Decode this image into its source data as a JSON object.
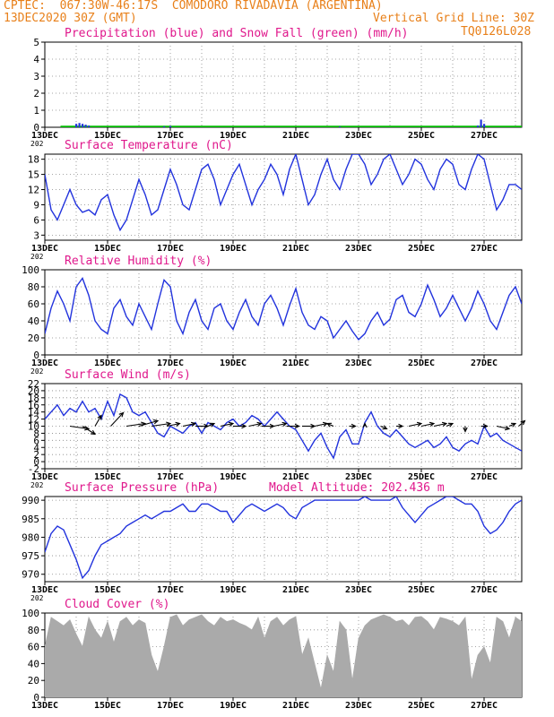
{
  "header": {
    "line1": "CPTEC:  067:30W-46:17S  COMODORO RIVADAVIA (ARGENTINA)",
    "line2_left": "13DEC2020 30Z (GMT)",
    "line2_right": "Vertical Grid Line: 30Z",
    "code": "TQ0126L028",
    "year_fragment": "202"
  },
  "colors": {
    "header": "#e8801a",
    "title": "#e0188c",
    "line": "#2233dd",
    "snow": "#00bb00",
    "cloud": "#aaaaaa",
    "grid": "#888888",
    "arrow": "#000000"
  },
  "x_axis": {
    "days": [
      "13DEC",
      "15DEC",
      "17DEC",
      "19DEC",
      "21DEC",
      "23DEC",
      "25DEC",
      "27DEC"
    ],
    "day_values": [
      13,
      15,
      17,
      19,
      21,
      23,
      25,
      27
    ],
    "xlim": [
      13,
      28.2
    ]
  },
  "chart_data": [
    {
      "type": "bar",
      "id": "precip",
      "title": "Precipitation (blue) and Snow Fall (green) (mm/h)",
      "ylim": [
        0,
        5
      ],
      "yticks": [
        0,
        1,
        2,
        3,
        4,
        5
      ],
      "yticklabels": [
        "0",
        "1",
        "2",
        "3",
        "4",
        "5"
      ],
      "series": [
        {
          "name": "precipitation",
          "color": "#2233dd",
          "points": [
            [
              14.0,
              0.2
            ],
            [
              14.1,
              0.25
            ],
            [
              14.2,
              0.2
            ],
            [
              14.3,
              0.15
            ],
            [
              14.4,
              0.1
            ],
            [
              16.8,
              0.05
            ],
            [
              17.0,
              0.07
            ],
            [
              22.4,
              0.04
            ],
            [
              26.8,
              0.1
            ],
            [
              26.9,
              0.45
            ],
            [
              27.0,
              0.2
            ]
          ]
        },
        {
          "name": "snowfall",
          "color": "#00bb00",
          "baseline_from": 13.5,
          "baseline_to": 28.2,
          "value": 0.04
        }
      ]
    },
    {
      "type": "line",
      "id": "temp",
      "title": "Surface Temperature (nC)",
      "ylim": [
        2,
        19
      ],
      "yticks": [
        3,
        6,
        9,
        12,
        15,
        18
      ],
      "yticklabels": [
        "3",
        "6",
        "9",
        "12",
        "15",
        "18"
      ],
      "x": [
        13.0,
        13.2,
        13.4,
        13.6,
        13.8,
        14.0,
        14.2,
        14.4,
        14.6,
        14.8,
        15.0,
        15.2,
        15.4,
        15.6,
        15.8,
        16.0,
        16.2,
        16.4,
        16.6,
        16.8,
        17.0,
        17.2,
        17.4,
        17.6,
        17.8,
        18.0,
        18.2,
        18.4,
        18.6,
        18.8,
        19.0,
        19.2,
        19.4,
        19.6,
        19.8,
        20.0,
        20.2,
        20.4,
        20.6,
        20.8,
        21.0,
        21.2,
        21.4,
        21.6,
        21.8,
        22.0,
        22.2,
        22.4,
        22.6,
        22.8,
        23.0,
        23.2,
        23.4,
        23.6,
        23.8,
        24.0,
        24.2,
        24.4,
        24.6,
        24.8,
        25.0,
        25.2,
        25.4,
        25.6,
        25.8,
        26.0,
        26.2,
        26.4,
        26.6,
        26.8,
        27.0,
        27.2,
        27.4,
        27.6,
        27.8,
        28.0,
        28.2
      ],
      "values": [
        15,
        8,
        6,
        9,
        12,
        9,
        7.5,
        8,
        7,
        10,
        11,
        7,
        4,
        6,
        10,
        14,
        11,
        7,
        8,
        12,
        16,
        13,
        9,
        8,
        12,
        16,
        17,
        14,
        9,
        12,
        15,
        17,
        13,
        9,
        12,
        14,
        17,
        15,
        11,
        16,
        19,
        14,
        9,
        11,
        15,
        18,
        14,
        12,
        16,
        19,
        19,
        17,
        13,
        15,
        18,
        19,
        16,
        13,
        15,
        18,
        17,
        14,
        12,
        16,
        18,
        17,
        13,
        12,
        16,
        19,
        18,
        13,
        8,
        10,
        13,
        13,
        12
      ],
      "series_color": "#2233dd"
    },
    {
      "type": "line",
      "id": "rh",
      "title": "Relative Humidity (%)",
      "ylim": [
        0,
        100
      ],
      "yticks": [
        0,
        20,
        40,
        60,
        80,
        100
      ],
      "yticklabels": [
        "0",
        "20",
        "40",
        "60",
        "80",
        "100"
      ],
      "x": [
        13.0,
        13.2,
        13.4,
        13.6,
        13.8,
        14.0,
        14.2,
        14.4,
        14.6,
        14.8,
        15.0,
        15.2,
        15.4,
        15.6,
        15.8,
        16.0,
        16.2,
        16.4,
        16.6,
        16.8,
        17.0,
        17.2,
        17.4,
        17.6,
        17.8,
        18.0,
        18.2,
        18.4,
        18.6,
        18.8,
        19.0,
        19.2,
        19.4,
        19.6,
        19.8,
        20.0,
        20.2,
        20.4,
        20.6,
        20.8,
        21.0,
        21.2,
        21.4,
        21.6,
        21.8,
        22.0,
        22.2,
        22.4,
        22.6,
        22.8,
        23.0,
        23.2,
        23.4,
        23.6,
        23.8,
        24.0,
        24.2,
        24.4,
        24.6,
        24.8,
        25.0,
        25.2,
        25.4,
        25.6,
        25.8,
        26.0,
        26.2,
        26.4,
        26.6,
        26.8,
        27.0,
        27.2,
        27.4,
        27.6,
        27.8,
        28.0,
        28.2
      ],
      "values": [
        25,
        55,
        75,
        60,
        40,
        80,
        90,
        70,
        40,
        30,
        25,
        55,
        65,
        45,
        35,
        60,
        45,
        30,
        60,
        88,
        80,
        40,
        25,
        50,
        65,
        40,
        30,
        55,
        60,
        40,
        30,
        50,
        65,
        45,
        35,
        60,
        70,
        55,
        35,
        58,
        78,
        50,
        35,
        30,
        45,
        40,
        20,
        30,
        40,
        28,
        18,
        25,
        40,
        50,
        35,
        42,
        65,
        70,
        50,
        45,
        60,
        82,
        65,
        45,
        55,
        70,
        55,
        40,
        55,
        75,
        60,
        40,
        30,
        50,
        70,
        80,
        60
      ],
      "series_color": "#2233dd"
    },
    {
      "type": "line",
      "id": "wind",
      "title": "Surface Wind (m/s)",
      "ylim": [
        -2,
        22
      ],
      "yticks": [
        -2,
        0,
        2,
        4,
        6,
        8,
        10,
        12,
        14,
        16,
        18,
        20,
        22
      ],
      "yticklabels": [
        "-2",
        "0",
        "2",
        "4",
        "6",
        "8",
        "10",
        "12",
        "14",
        "16",
        "18",
        "20",
        "22"
      ],
      "x": [
        13.0,
        13.2,
        13.4,
        13.6,
        13.8,
        14.0,
        14.2,
        14.4,
        14.6,
        14.8,
        15.0,
        15.2,
        15.4,
        15.6,
        15.8,
        16.0,
        16.2,
        16.4,
        16.6,
        16.8,
        17.0,
        17.2,
        17.4,
        17.6,
        17.8,
        18.0,
        18.2,
        18.4,
        18.6,
        18.8,
        19.0,
        19.2,
        19.4,
        19.6,
        19.8,
        20.0,
        20.2,
        20.4,
        20.6,
        20.8,
        21.0,
        21.2,
        21.4,
        21.6,
        21.8,
        22.0,
        22.2,
        22.4,
        22.6,
        22.8,
        23.0,
        23.2,
        23.4,
        23.6,
        23.8,
        24.0,
        24.2,
        24.4,
        24.6,
        24.8,
        25.0,
        25.2,
        25.4,
        25.6,
        25.8,
        26.0,
        26.2,
        26.4,
        26.6,
        26.8,
        27.0,
        27.2,
        27.4,
        27.6,
        27.8,
        28.0,
        28.2
      ],
      "values": [
        12,
        14,
        16,
        13,
        15,
        14,
        17,
        14,
        15,
        12,
        17,
        13,
        19,
        18,
        14,
        13,
        14,
        11,
        8,
        7,
        10,
        9,
        8,
        10,
        11,
        8,
        11,
        10,
        9,
        11,
        12,
        10,
        11,
        13,
        12,
        10,
        12,
        14,
        12,
        10,
        9,
        6,
        3,
        6,
        8,
        4,
        1,
        7,
        9,
        5,
        5,
        11,
        14,
        10,
        8,
        7,
        9,
        7,
        5,
        4,
        5,
        6,
        4,
        5,
        7,
        4,
        3,
        5,
        6,
        5,
        10,
        7,
        8,
        6,
        5,
        4,
        3
      ],
      "series_color": "#2233dd",
      "arrows": [
        {
          "x": 13.8,
          "u": 3,
          "v": -1
        },
        {
          "x": 14.2,
          "u": 2,
          "v": -3
        },
        {
          "x": 14.6,
          "u": 1,
          "v": 4
        },
        {
          "x": 15.1,
          "u": 2,
          "v": 5
        },
        {
          "x": 15.6,
          "u": 3,
          "v": 1
        },
        {
          "x": 16.0,
          "u": 3,
          "v": 2
        },
        {
          "x": 16.4,
          "u": 3,
          "v": 1
        },
        {
          "x": 16.9,
          "u": 2,
          "v": 1
        },
        {
          "x": 17.4,
          "u": 2,
          "v": 1
        },
        {
          "x": 17.8,
          "u": 2,
          "v": 0
        },
        {
          "x": 18.2,
          "u": 1,
          "v": 1
        },
        {
          "x": 18.6,
          "u": 2,
          "v": 1
        },
        {
          "x": 19.0,
          "u": 2,
          "v": 0
        },
        {
          "x": 19.5,
          "u": 2,
          "v": 1
        },
        {
          "x": 19.9,
          "u": 2,
          "v": 0
        },
        {
          "x": 20.3,
          "u": 2,
          "v": 1
        },
        {
          "x": 20.7,
          "u": 2,
          "v": 0
        },
        {
          "x": 21.2,
          "u": 2,
          "v": 0
        },
        {
          "x": 21.6,
          "u": 2,
          "v": 1
        },
        {
          "x": 22.2,
          "u": -1,
          "v": 1
        },
        {
          "x": 22.7,
          "u": 1,
          "v": 0
        },
        {
          "x": 23.2,
          "u": 0,
          "v": 1
        },
        {
          "x": 23.7,
          "u": 1,
          "v": -1
        },
        {
          "x": 24.2,
          "u": 1,
          "v": 0
        },
        {
          "x": 24.6,
          "u": 2,
          "v": 1
        },
        {
          "x": 25.0,
          "u": 2,
          "v": 1
        },
        {
          "x": 25.4,
          "u": 2,
          "v": 1
        },
        {
          "x": 25.8,
          "u": 1,
          "v": 1
        },
        {
          "x": 26.4,
          "u": 0,
          "v": -2
        },
        {
          "x": 26.9,
          "u": 1,
          "v": 0
        },
        {
          "x": 27.4,
          "u": 2,
          "v": -1
        },
        {
          "x": 27.8,
          "u": 1,
          "v": 1
        },
        {
          "x": 28.1,
          "u": 1,
          "v": 2
        }
      ]
    },
    {
      "type": "line",
      "id": "press",
      "title": "Surface Pressure (hPa)",
      "subtitle": "Model Altitude: 202.436 m",
      "ylim": [
        968,
        991
      ],
      "yticks": [
        970,
        975,
        980,
        985,
        990
      ],
      "yticklabels": [
        "970",
        "975",
        "980",
        "985",
        "990"
      ],
      "x": [
        13.0,
        13.2,
        13.4,
        13.6,
        13.8,
        14.0,
        14.2,
        14.4,
        14.6,
        14.8,
        15.0,
        15.2,
        15.4,
        15.6,
        15.8,
        16.0,
        16.2,
        16.4,
        16.6,
        16.8,
        17.0,
        17.2,
        17.4,
        17.6,
        17.8,
        18.0,
        18.2,
        18.4,
        18.6,
        18.8,
        19.0,
        19.2,
        19.4,
        19.6,
        19.8,
        20.0,
        20.2,
        20.4,
        20.6,
        20.8,
        21.0,
        21.2,
        21.4,
        21.6,
        21.8,
        22.0,
        22.2,
        22.4,
        22.6,
        22.8,
        23.0,
        23.2,
        23.4,
        23.6,
        23.8,
        24.0,
        24.2,
        24.4,
        24.6,
        24.8,
        25.0,
        25.2,
        25.4,
        25.6,
        25.8,
        26.0,
        26.2,
        26.4,
        26.6,
        26.8,
        27.0,
        27.2,
        27.4,
        27.6,
        27.8,
        28.0,
        28.2
      ],
      "values": [
        976,
        981,
        983,
        982,
        978,
        974,
        969,
        971,
        975,
        978,
        979,
        980,
        981,
        983,
        984,
        985,
        986,
        985,
        986,
        987,
        987,
        988,
        989,
        987,
        987,
        989,
        989,
        988,
        987,
        987,
        984,
        986,
        988,
        989,
        988,
        987,
        988,
        989,
        988,
        986,
        985,
        988,
        989,
        990,
        990,
        990,
        990,
        990,
        990,
        990,
        990,
        991,
        990,
        990,
        990,
        990,
        991,
        988,
        986,
        984,
        986,
        988,
        989,
        990,
        991,
        991,
        990,
        989,
        989,
        987,
        983,
        981,
        982,
        984,
        987,
        989,
        990
      ],
      "series_color": "#2233dd"
    },
    {
      "type": "area",
      "id": "cloud",
      "title": "Cloud Cover (%)",
      "ylim": [
        0,
        100
      ],
      "yticks": [
        0,
        20,
        40,
        60,
        80,
        100
      ],
      "yticklabels": [
        "0",
        "20",
        "40",
        "60",
        "80",
        "100"
      ],
      "x": [
        13.0,
        13.2,
        13.4,
        13.6,
        13.8,
        14.0,
        14.2,
        14.4,
        14.6,
        14.8,
        15.0,
        15.2,
        15.4,
        15.6,
        15.8,
        16.0,
        16.2,
        16.4,
        16.6,
        16.8,
        17.0,
        17.2,
        17.4,
        17.6,
        17.8,
        18.0,
        18.2,
        18.4,
        18.6,
        18.8,
        19.0,
        19.2,
        19.4,
        19.6,
        19.8,
        20.0,
        20.2,
        20.4,
        20.6,
        20.8,
        21.0,
        21.2,
        21.4,
        21.6,
        21.8,
        22.0,
        22.2,
        22.4,
        22.6,
        22.8,
        23.0,
        23.2,
        23.4,
        23.6,
        23.8,
        24.0,
        24.2,
        24.4,
        24.6,
        24.8,
        25.0,
        25.2,
        25.4,
        25.6,
        25.8,
        26.0,
        26.2,
        26.4,
        26.6,
        26.8,
        27.0,
        27.2,
        27.4,
        27.6,
        27.8,
        28.0,
        28.2
      ],
      "values": [
        60,
        95,
        90,
        85,
        92,
        75,
        60,
        95,
        80,
        70,
        90,
        65,
        90,
        95,
        85,
        92,
        88,
        50,
        30,
        60,
        95,
        98,
        85,
        92,
        95,
        98,
        90,
        85,
        95,
        90,
        92,
        88,
        85,
        80,
        95,
        70,
        90,
        95,
        85,
        92,
        96,
        50,
        70,
        40,
        10,
        50,
        30,
        90,
        80,
        20,
        70,
        85,
        92,
        95,
        98,
        95,
        90,
        92,
        85,
        95,
        96,
        90,
        80,
        95,
        93,
        90,
        85,
        95,
        20,
        50,
        60,
        40,
        95,
        90,
        70,
        95,
        90
      ],
      "series_color": "#aaaaaa"
    }
  ]
}
